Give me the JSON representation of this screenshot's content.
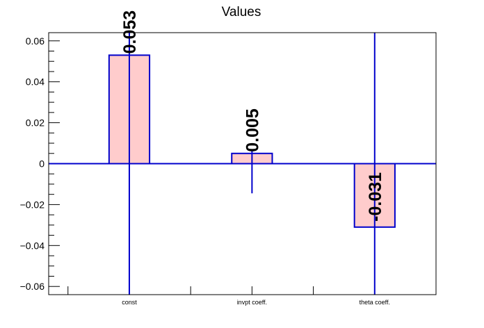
{
  "chart_data": {
    "type": "bar",
    "title": "Values",
    "xlabel": "",
    "ylabel": "",
    "categories": [
      "const",
      "invpt coeff.",
      "theta coeff."
    ],
    "values": [
      0.053,
      0.005,
      -0.031
    ],
    "value_labels": [
      "0.053",
      "0.005",
      "-0.031"
    ],
    "error_low": [
      -0.064,
      -0.0145,
      -0.064
    ],
    "error_high": [
      0.064,
      0.0065,
      0.064
    ],
    "ylim": [
      -0.064,
      0.064
    ],
    "yticks": [
      -0.06,
      -0.04,
      -0.02,
      0,
      0.02,
      0.04,
      0.06
    ],
    "ytick_labels": [
      "−0.06",
      "−0.04",
      "−0.02",
      "0",
      "0.02",
      "0.04",
      "0.06"
    ],
    "grid": false,
    "legend": "none",
    "colors": {
      "bar_fill": "#ffcccc",
      "bar_edge": "#0000cc",
      "axis": "#000000"
    }
  }
}
